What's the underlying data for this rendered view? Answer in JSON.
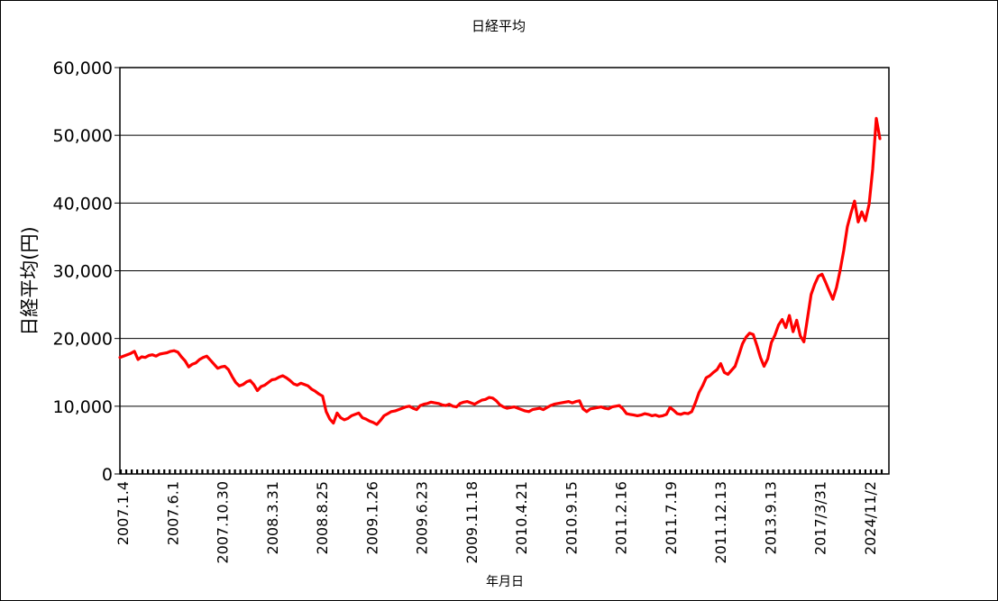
{
  "chart_data": {
    "type": "line",
    "title": "日経平均",
    "xlabel": "年月日",
    "ylabel": "日経平均(円)",
    "ylim": [
      0,
      60000
    ],
    "yticks": [
      0,
      10000,
      20000,
      30000,
      40000,
      50000,
      60000
    ],
    "ytick_labels": [
      "0",
      "10,000",
      "20,000",
      "30,000",
      "40,000",
      "50,000",
      "60,000"
    ],
    "xtick_labels": [
      "2007.1.4",
      "2007.6.1",
      "2007.10.30",
      "2008.3.31",
      "2008.8.25",
      "2009.1.26",
      "2009.6.23",
      "2009.11.18",
      "2010.4.21",
      "2010.9.15",
      "2011.2.16",
      "2011.7.19",
      "2011.12.13",
      "2013.9.13",
      "2017/3/31",
      "2024/11/2"
    ],
    "grid": "horizontal",
    "series_color": "#ff0000",
    "series": [
      {
        "values": [
          17200,
          17400,
          17600,
          17800,
          18100,
          16900,
          17300,
          17200,
          17500,
          17600,
          17400,
          17700,
          17800,
          17900,
          18100,
          18200,
          18000,
          17300,
          16700,
          15800,
          16200,
          16400,
          16900,
          17200,
          17400,
          16800,
          16200,
          15600,
          15800,
          15900,
          15400,
          14400,
          13500,
          13000,
          13200,
          13600,
          13800,
          13200,
          12300,
          12900,
          13100,
          13500,
          13900,
          14000,
          14300,
          14500,
          14200,
          13800,
          13300,
          13100,
          13400,
          13200,
          13000,
          12500,
          12200,
          11800,
          11500,
          9200,
          8100,
          7500,
          9000,
          8300,
          8000,
          8200,
          8600,
          8800,
          9000,
          8300,
          8100,
          7800,
          7600,
          7300,
          7900,
          8600,
          8900,
          9200,
          9300,
          9500,
          9700,
          9900,
          10000,
          9700,
          9500,
          10100,
          10300,
          10400,
          10600,
          10500,
          10400,
          10200,
          10100,
          10300,
          10000,
          9900,
          10400,
          10600,
          10700,
          10500,
          10300,
          10600,
          10900,
          11000,
          11300,
          11200,
          10800,
          10200,
          9900,
          9700,
          9800,
          9900,
          9700,
          9500,
          9300,
          9200,
          9500,
          9600,
          9700,
          9500,
          9800,
          10100,
          10300,
          10400,
          10500,
          10600,
          10700,
          10500,
          10700,
          10800,
          9600,
          9200,
          9600,
          9700,
          9800,
          9900,
          9700,
          9600,
          9900,
          10000,
          10100,
          9600,
          8900,
          8800,
          8700,
          8600,
          8700,
          8900,
          8800,
          8600,
          8700,
          8500,
          8600,
          8800,
          9800,
          9400,
          8900,
          8800,
          9000,
          8900,
          9200,
          10500,
          12000,
          13000,
          14200,
          14500,
          15000,
          15400,
          16300,
          15000,
          14700,
          15300,
          15900,
          17500,
          19200,
          20200,
          20800,
          20600,
          19000,
          17200,
          15900,
          17000,
          19400,
          20500,
          22000,
          22800,
          21600,
          23400,
          21000,
          22700,
          20400,
          19500,
          23000,
          26500,
          28000,
          29200,
          29500,
          28300,
          27000,
          25800,
          27500,
          30000,
          33000,
          36500,
          38500,
          40300,
          37200,
          38700,
          37400,
          39800,
          45000,
          52500,
          49500
        ]
      }
    ]
  }
}
